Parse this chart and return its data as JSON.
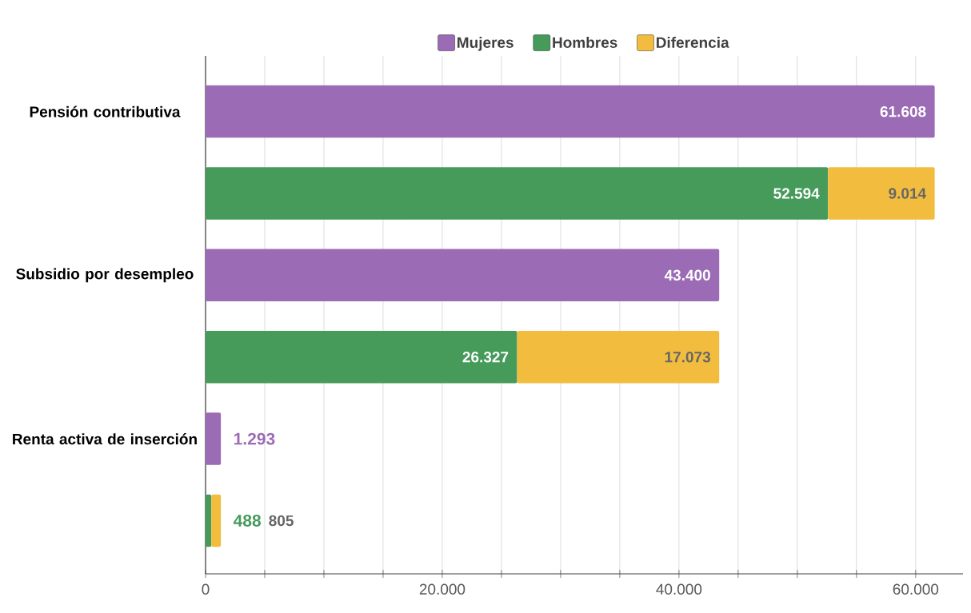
{
  "chart_data": {
    "type": "bar",
    "orientation": "horizontal",
    "stacked": true,
    "legend": "top",
    "grid": "x",
    "categories": [
      "Pensión contributiva",
      null,
      "Subsidio por desempleo",
      null,
      "Renta activa de inserción",
      null
    ],
    "series": [
      {
        "name": "Mujeres",
        "color": "#9b6bb5",
        "values": [
          61608,
          null,
          43400,
          null,
          1293,
          null
        ],
        "value_labels": [
          "61.608",
          null,
          "43.400",
          null,
          "1.293",
          null
        ]
      },
      {
        "name": "Hombres",
        "color": "#469b5b",
        "values": [
          null,
          52594,
          null,
          26327,
          null,
          488
        ],
        "value_labels": [
          null,
          "52.594",
          null,
          "26.327",
          null,
          "488"
        ]
      },
      {
        "name": "Diferencia",
        "color": "#f2bd3f",
        "values": [
          null,
          9014,
          null,
          17073,
          null,
          805
        ],
        "value_labels": [
          null,
          "9.014",
          null,
          "17.073",
          null,
          "805"
        ]
      }
    ],
    "xlim": [
      0,
      64000
    ],
    "xticks": [
      0,
      {
        "value": 5000,
        "label": null
      },
      {
        "value": 10000,
        "label": null
      },
      {
        "value": 15000,
        "label": null
      },
      {
        "value": 20000,
        "label": "20.000"
      },
      {
        "value": 25000,
        "label": null
      },
      {
        "value": 30000,
        "label": null
      },
      {
        "value": 35000,
        "label": null
      },
      {
        "value": 40000,
        "label": "40.000"
      },
      {
        "value": 45000,
        "label": null
      },
      {
        "value": 50000,
        "label": null
      },
      {
        "value": 55000,
        "label": null
      },
      {
        "value": 60000,
        "label": "60.000"
      }
    ]
  }
}
